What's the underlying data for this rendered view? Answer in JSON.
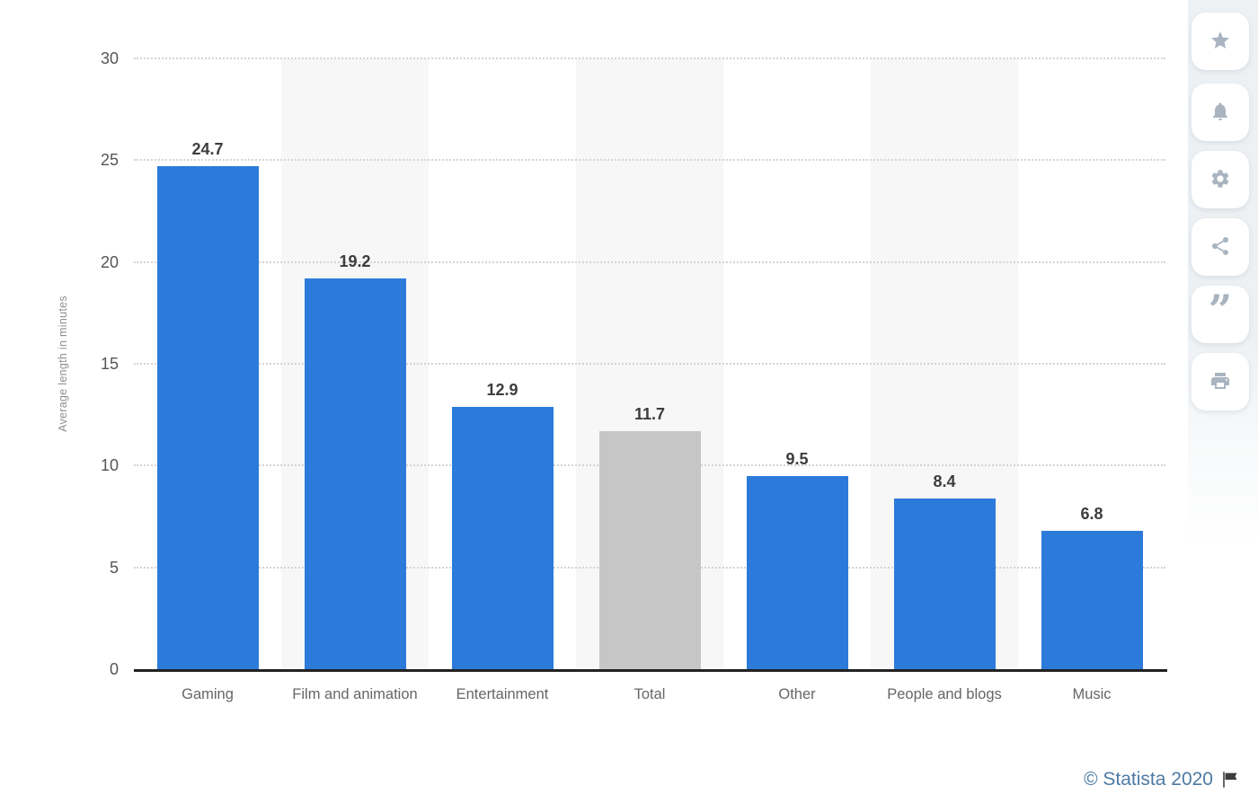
{
  "chart_data": {
    "type": "bar",
    "title": "",
    "xlabel": "",
    "ylabel": "Average length in minutes",
    "categories": [
      "Gaming",
      "Film and animation",
      "Entertainment",
      "Total",
      "Other",
      "People and blogs",
      "Music"
    ],
    "values": [
      24.7,
      19.2,
      12.9,
      11.7,
      9.5,
      8.4,
      6.8
    ],
    "bar_colors": [
      "#2c7bda",
      "#2c7bda",
      "#2c7bda",
      "#c6c6c6",
      "#2c7bda",
      "#2c7bda",
      "#2c7bda"
    ],
    "ylim": [
      0,
      30
    ],
    "yticks": [
      0,
      5,
      10,
      15,
      20,
      25,
      30
    ],
    "grid": "horizontal-dotted",
    "legend": "none",
    "plot_background": {
      "base": "#ffffff",
      "stripe_color": "#f7f7f7",
      "striped_bands": [
        1,
        3,
        5
      ]
    }
  },
  "toolbar": {
    "buttons": [
      {
        "name": "favorite",
        "icon": "star-icon"
      },
      {
        "name": "alerts",
        "icon": "bell-icon"
      },
      {
        "name": "settings",
        "icon": "gear-icon"
      },
      {
        "name": "share",
        "icon": "share-icon"
      },
      {
        "name": "cite",
        "icon": "quote-icon",
        "glyph": "”"
      },
      {
        "name": "print",
        "icon": "print-icon"
      }
    ]
  },
  "footer": {
    "credit": "© Statista 2020"
  },
  "colors": {
    "bar_blue": "#2c7bda",
    "bar_gray": "#c6c6c6",
    "icon_gray": "#a9b4c0",
    "credit_blue": "#4c7aa3",
    "axis_line": "#222222",
    "gridline": "#d4d4d4",
    "value_label": "#3d3d3d",
    "tick_label": "#555555",
    "category_label": "#666666"
  }
}
